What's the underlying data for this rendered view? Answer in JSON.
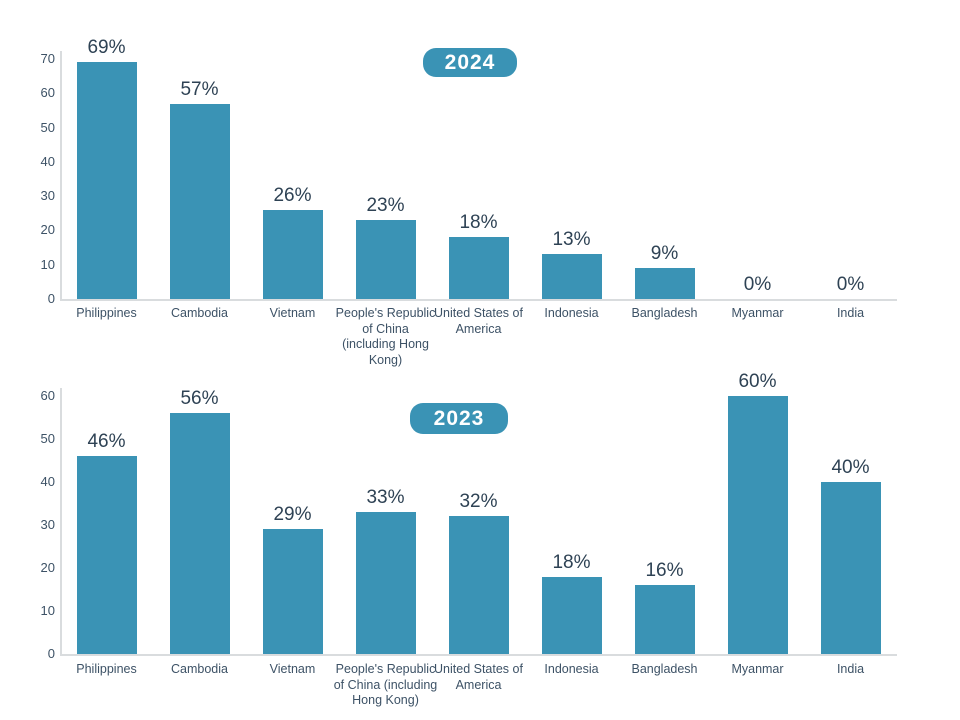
{
  "colors": {
    "bar": "#3a93b5",
    "badge_background": "#3a93b5",
    "badge_text": "#ffffff",
    "value_label": "#2e4254",
    "tick_label": "#3d5266",
    "category_label": "#3d5266",
    "axis_line": "#d9dcde",
    "background": "#ffffff"
  },
  "chart_data": [
    {
      "type": "bar",
      "title": "2024",
      "badge_label": "2024",
      "categories": [
        "Philippines",
        "Cambodia",
        "Vietnam",
        "People's Republic\nof China\n(including Hong\nKong)",
        "United States of\nAmerica",
        "Indonesia",
        "Bangladesh",
        "Myanmar",
        "India"
      ],
      "values": [
        69,
        57,
        26,
        23,
        18,
        13,
        9,
        0,
        0
      ],
      "value_labels": [
        "69%",
        "57%",
        "26%",
        "23%",
        "18%",
        "13%",
        "9%",
        "0%",
        "0%"
      ],
      "ylim": [
        0,
        70
      ],
      "yticks": [
        0,
        10,
        20,
        30,
        40,
        50,
        60,
        70
      ],
      "grid": false,
      "legend_position": "none"
    },
    {
      "type": "bar",
      "title": "2023",
      "badge_label": "2023",
      "categories": [
        "Philippines",
        "Cambodia",
        "Vietnam",
        "People's Republic\nof China (including\nHong Kong)",
        "United States of\nAmerica",
        "Indonesia",
        "Bangladesh",
        "Myanmar",
        "India"
      ],
      "values": [
        46,
        56,
        29,
        33,
        32,
        18,
        16,
        60,
        40
      ],
      "value_labels": [
        "46%",
        "56%",
        "29%",
        "33%",
        "32%",
        "18%",
        "16%",
        "60%",
        "40%"
      ],
      "ylim": [
        0,
        60
      ],
      "yticks": [
        0,
        10,
        20,
        30,
        40,
        50,
        60
      ],
      "grid": false,
      "legend_position": "none"
    }
  ]
}
